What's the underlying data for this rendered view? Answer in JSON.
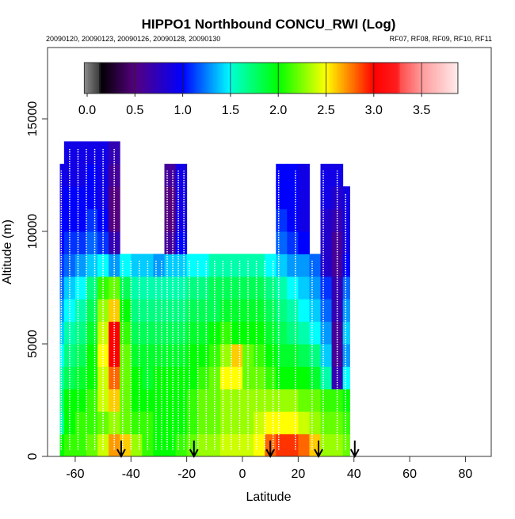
{
  "chart_data": {
    "type": "heatmap",
    "title": "HIPPO1 Northbound CONCU_RWI (Log)",
    "subtitle_left": "20090120, 20090123, 20090126, 20090128, 20090130",
    "subtitle_right": "RF07, RF08, RF09, RF10, RF11",
    "xlabel": "Latitude",
    "ylabel": "Altitude (m)",
    "xlim": [
      -69.7,
      89.6
    ],
    "ylim": [
      0,
      18170
    ],
    "xticks": [
      "-60",
      "-40",
      "-20",
      "0",
      "20",
      "40",
      "60",
      "80"
    ],
    "xtick_values": [
      -60,
      -40,
      -20,
      0,
      20,
      40,
      60,
      80
    ],
    "yticks": [
      "0",
      "5000",
      "10000",
      "15000"
    ],
    "ytick_values": [
      0,
      5000,
      10000,
      15000
    ],
    "colorbar": {
      "range": [
        -0.03,
        3.88
      ],
      "ticks": [
        "0.0",
        "0.5",
        "1.0",
        "1.5",
        "2.0",
        "2.5",
        "3.0",
        "3.5"
      ],
      "tick_values": [
        0,
        0.5,
        1.0,
        1.5,
        2.0,
        2.5,
        3.0,
        3.5
      ]
    },
    "lat_centers": [
      -66,
      -62,
      -58,
      -54,
      -50,
      -46,
      -42,
      -38,
      -34,
      -30,
      -26,
      -22,
      -18,
      -14,
      -10,
      -6,
      -2,
      2,
      6,
      10,
      14,
      18,
      22,
      26,
      30,
      34,
      38
    ],
    "lat_bin_width": 4,
    "alt_bin_height": 1000,
    "values_by_altitude_bin": [
      [
        2.0,
        2.1,
        2.1,
        2.2,
        2.4,
        2.7,
        2.6,
        2.3,
        2.1,
        2.0,
        2.0,
        2.1,
        2.2,
        2.3,
        2.3,
        2.4,
        2.4,
        2.4,
        2.5,
        2.8,
        2.9,
        2.9,
        2.8,
        2.6,
        2.3,
        2.3,
        2.2
      ],
      [
        1.6,
        2.0,
        2.1,
        2.1,
        2.2,
        2.3,
        2.2,
        2.1,
        2.1,
        2.0,
        2.0,
        2.0,
        2.1,
        2.2,
        2.2,
        2.3,
        2.3,
        2.3,
        2.4,
        2.5,
        2.5,
        2.5,
        2.4,
        2.3,
        2.2,
        2.2,
        2.1
      ],
      [
        1.7,
        2.0,
        2.0,
        2.1,
        2.4,
        2.6,
        2.2,
        2.0,
        2.0,
        2.0,
        2.0,
        2.0,
        2.1,
        2.2,
        2.2,
        2.3,
        2.3,
        2.3,
        2.3,
        2.3,
        2.3,
        2.3,
        2.2,
        2.2,
        2.1,
        2.1,
        2.0
      ],
      [
        1.6,
        1.8,
        1.9,
        2.0,
        2.4,
        2.8,
        2.2,
        2.0,
        1.9,
        2.0,
        2.0,
        2.0,
        2.0,
        2.1,
        2.2,
        2.5,
        2.5,
        2.2,
        2.2,
        2.1,
        2.0,
        2.0,
        2.0,
        1.9,
        1.6,
        0.7,
        1.5
      ],
      [
        1.5,
        1.7,
        1.8,
        2.0,
        2.5,
        3.0,
        2.2,
        1.9,
        1.9,
        1.9,
        1.9,
        1.9,
        2.0,
        2.0,
        2.1,
        2.3,
        2.6,
        2.2,
        2.1,
        2.0,
        1.9,
        1.9,
        1.8,
        1.7,
        1.4,
        0.6,
        1.3
      ],
      [
        1.4,
        1.6,
        1.7,
        1.9,
        2.4,
        3.0,
        2.1,
        1.8,
        1.8,
        1.8,
        1.8,
        1.8,
        1.9,
        1.9,
        2.0,
        2.1,
        2.0,
        2.0,
        2.0,
        1.9,
        1.8,
        1.7,
        1.6,
        1.5,
        1.3,
        0.6,
        1.4
      ],
      [
        1.3,
        1.5,
        1.6,
        1.8,
        2.3,
        2.6,
        2.0,
        1.7,
        1.7,
        1.7,
        1.7,
        1.7,
        1.8,
        1.8,
        1.8,
        1.9,
        1.9,
        1.9,
        1.9,
        1.8,
        1.7,
        1.6,
        1.5,
        1.4,
        1.2,
        0.7,
        1.3
      ],
      [
        1.2,
        1.4,
        1.5,
        1.7,
        2.1,
        2.2,
        1.8,
        1.6,
        1.6,
        1.6,
        1.6,
        1.6,
        1.7,
        1.7,
        1.8,
        1.8,
        1.8,
        1.8,
        1.8,
        1.7,
        1.6,
        1.5,
        1.4,
        1.3,
        1.1,
        0.7,
        1.2
      ],
      [
        1.1,
        1.2,
        1.3,
        1.4,
        1.5,
        1.3,
        1.5,
        1.4,
        1.4,
        1.3,
        1.4,
        1.4,
        1.5,
        1.5,
        1.6,
        1.6,
        1.6,
        1.6,
        1.6,
        1.5,
        1.4,
        1.3,
        1.3,
        1.2,
        0.8,
        0.6,
        1.0
      ],
      [
        1.0,
        1.1,
        1.1,
        1.2,
        1.1,
        0.7,
        null,
        null,
        null,
        null,
        0.6,
        1.0,
        null,
        null,
        null,
        null,
        null,
        null,
        null,
        null,
        1.2,
        1.1,
        1.0,
        null,
        0.8,
        0.6,
        0.9
      ],
      [
        1.0,
        1.0,
        1.0,
        1.1,
        1.0,
        0.5,
        null,
        null,
        null,
        null,
        0.5,
        0.9,
        null,
        null,
        null,
        null,
        null,
        null,
        null,
        null,
        1.1,
        1.0,
        0.9,
        null,
        0.8,
        0.7,
        0.9
      ],
      [
        0.9,
        1.0,
        1.0,
        1.0,
        0.9,
        0.5,
        null,
        null,
        null,
        null,
        0.5,
        0.9,
        null,
        null,
        null,
        null,
        null,
        null,
        null,
        null,
        1.0,
        1.0,
        0.9,
        null,
        0.9,
        0.8,
        0.9
      ],
      [
        0.9,
        0.9,
        0.9,
        1.0,
        0.9,
        0.6,
        null,
        null,
        null,
        null,
        0.6,
        0.9,
        null,
        null,
        null,
        null,
        null,
        null,
        null,
        null,
        1.0,
        1.0,
        0.9,
        null,
        0.9,
        0.9,
        null
      ],
      [
        null,
        0.9,
        0.9,
        0.9,
        0.9,
        0.7,
        null,
        null,
        null,
        null,
        null,
        null,
        null,
        null,
        null,
        null,
        null,
        null,
        null,
        null,
        null,
        null,
        null,
        null,
        null,
        null,
        null
      ]
    ],
    "profile_latitudes": [
      -65,
      -62,
      -59,
      -56,
      -53,
      -50,
      -46,
      -43,
      -40,
      -37,
      -34,
      -31,
      -29,
      -27,
      -25,
      -23,
      -21,
      -19,
      -16,
      -13,
      -10,
      -7,
      -4,
      -1,
      2,
      5,
      8,
      11,
      13,
      19,
      25,
      29,
      34,
      37
    ],
    "arrow_latitudes": [
      -43.5,
      -17.4,
      10,
      27.3,
      40.3
    ],
    "colors": {
      "stops": [
        [
          -0.03,
          "#8c8c8c"
        ],
        [
          0.13,
          "#3a3a3a"
        ],
        [
          0.14,
          "#000000"
        ],
        [
          0.5,
          "#55007f"
        ],
        [
          1.0,
          "#0000ff"
        ],
        [
          1.5,
          "#00ffff"
        ],
        [
          1.52,
          "#00ffcc"
        ],
        [
          2.0,
          "#00ff00"
        ],
        [
          2.5,
          "#ffff00"
        ],
        [
          3.0,
          "#ff0000"
        ],
        [
          3.26,
          "#ff2020"
        ],
        [
          3.27,
          "#ff4a4a"
        ],
        [
          3.5,
          "#ff9a9a"
        ],
        [
          3.88,
          "#ffecec"
        ]
      ]
    }
  }
}
